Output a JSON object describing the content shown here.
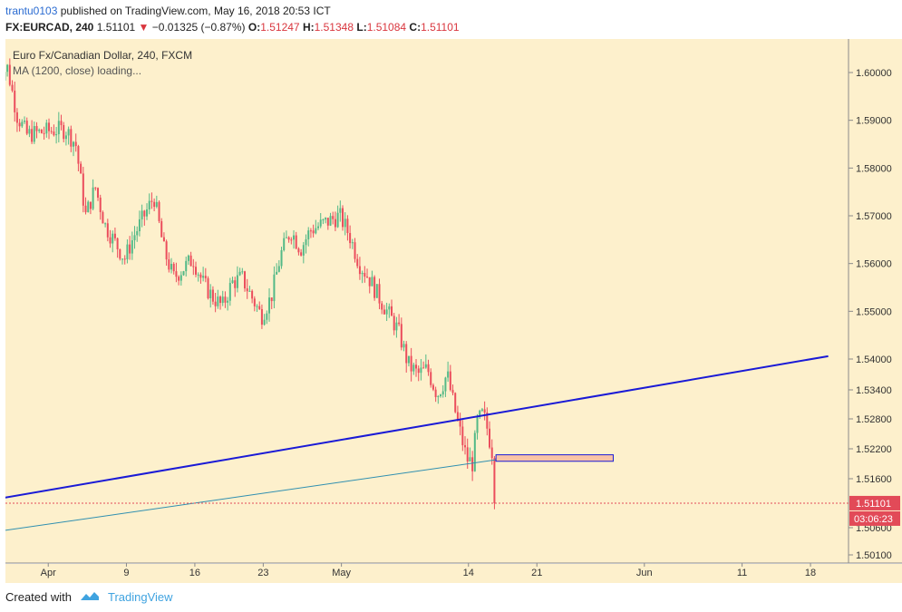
{
  "header": {
    "user": "trantu0103",
    "published": "published on TradingView.com, May 16, 2018 20:53 ICT",
    "symbol": "FX:EURCAD, 240",
    "last": "1.51101",
    "arrow": "▼",
    "change": "−0.01325 (−0.87%)",
    "o_label": "O:",
    "o_val": "1.51247",
    "h_label": "H:",
    "h_val": "1.51348",
    "l_label": "L:",
    "l_val": "1.51084",
    "c_label": "C:",
    "c_val": "1.51101"
  },
  "legend": {
    "title": "Euro Fx/Canadian Dollar, 240, FXCM",
    "ma": "MA (1200, close) loading..."
  },
  "footer": {
    "created": "Created with",
    "brand": "TradingView",
    "icon": "tradingview-logo-icon"
  },
  "colors": {
    "background": "#fdf0cc",
    "bull": "#53b987",
    "bear": "#eb4d5c",
    "trendline": "#1a1ad6",
    "ma_line": "#2f8fb0",
    "zone_fill": "#f9c3a6",
    "zone_border": "#1a1ad6",
    "price_tag": "#e24a58"
  },
  "chart_data": {
    "type": "candlestick",
    "title": "Euro Fx/Canadian Dollar, 240, FXCM",
    "y_ticks": [
      1.6,
      1.59,
      1.58,
      1.57,
      1.56,
      1.55,
      1.54,
      1.534,
      1.528,
      1.522,
      1.516,
      1.506,
      1.501
    ],
    "y_tick_labels": [
      "1.60000",
      "1.59000",
      "1.58000",
      "1.57000",
      "1.56000",
      "1.55000",
      "1.54000",
      "1.53400",
      "1.52800",
      "1.52200",
      "1.51600",
      "1.50600",
      "1.50100"
    ],
    "x_tick_labels": [
      "Apr",
      "9",
      "16",
      "23",
      "May",
      "14",
      "21",
      "Jun",
      "11",
      "18"
    ],
    "last_price": "1.51101",
    "countdown": "03:06:23",
    "price_path": [
      [
        "Mar 27",
        1.599
      ],
      [
        "Mar 28",
        1.601
      ],
      [
        "Mar 29",
        1.591
      ],
      [
        "Mar 30",
        1.587
      ],
      [
        "Apr 2",
        1.588
      ],
      [
        "Apr 3",
        1.588
      ],
      [
        "Apr 4",
        1.585
      ],
      [
        "Apr 5",
        1.57
      ],
      [
        "Apr 6",
        1.576
      ],
      [
        "Apr 7",
        1.568
      ],
      [
        "Apr 9",
        1.561
      ],
      [
        "Apr 10",
        1.566
      ],
      [
        "Apr 11",
        1.57
      ],
      [
        "Apr 12",
        1.574
      ],
      [
        "Apr 13",
        1.563
      ],
      [
        "Apr 14",
        1.557
      ],
      [
        "Apr 16",
        1.561
      ],
      [
        "Apr 17",
        1.556
      ],
      [
        "Apr 18",
        1.553
      ],
      [
        "Apr 19",
        1.551
      ],
      [
        "Apr 20",
        1.556
      ],
      [
        "Apr 21",
        1.557
      ],
      [
        "Apr 23",
        1.549
      ],
      [
        "Apr 24",
        1.553
      ],
      [
        "Apr 25",
        1.562
      ],
      [
        "Apr 26",
        1.567
      ],
      [
        "Apr 27",
        1.563
      ],
      [
        "Apr 28",
        1.567
      ],
      [
        "Apr 30",
        1.569
      ],
      [
        "May 1",
        1.57
      ],
      [
        "May 2",
        1.566
      ],
      [
        "May 3",
        1.56
      ],
      [
        "May 4",
        1.557
      ],
      [
        "May 5",
        1.553
      ],
      [
        "May 7",
        1.546
      ],
      [
        "May 8",
        1.539
      ],
      [
        "May 9",
        1.537
      ],
      [
        "May 10",
        1.538
      ],
      [
        "May 11",
        1.533
      ],
      [
        "May 12",
        1.537
      ],
      [
        "May 13",
        1.528
      ],
      [
        "May 14",
        1.52
      ],
      [
        "May 14b",
        1.519
      ],
      [
        "May 15",
        1.527
      ],
      [
        "May 15b",
        1.529
      ],
      [
        "May 16",
        1.527
      ],
      [
        "May 16b",
        1.521
      ],
      [
        "May 16c",
        1.511
      ]
    ],
    "overlays": {
      "trendline": {
        "start": [
          "Mar 25",
          1.5112
        ],
        "end": [
          "Jun 20",
          1.5406
        ]
      },
      "ma_1200": {
        "start": [
          "Mar 25",
          1.5048
        ],
        "end": [
          "May 17",
          1.5198
        ]
      },
      "zone": {
        "from": [
          "May 17",
          1.5208
        ],
        "to": [
          "May 29",
          1.5195
        ]
      }
    }
  }
}
